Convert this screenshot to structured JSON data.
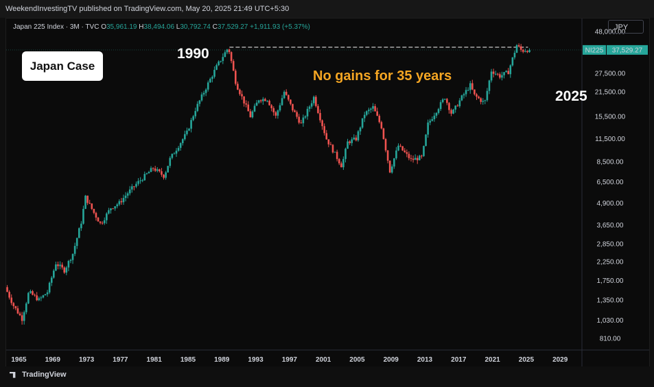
{
  "header": {
    "publisher": "WeekendInvestingTV published on TradingView.com, May 20, 2025 21:49 UTC+5:30"
  },
  "legend": {
    "symbol": "Japan 225 Index · 3M · TVC",
    "o_label": "O",
    "o_value": "35,961.19",
    "h_label": "H",
    "h_value": "38,494.06",
    "l_label": "L",
    "l_value": "30,792.74",
    "c_label": "C",
    "c_value": "37,529.27",
    "change": "+1,911.93 (+5.37%)"
  },
  "currency": "JPY",
  "annotations": {
    "box": "Japan Case",
    "year_start": "1990",
    "year_end": "2025",
    "message": "No gains for 35 years"
  },
  "price_tag": {
    "ticker": "NI225",
    "value": "37,529.27"
  },
  "footer": {
    "brand": "TradingView"
  },
  "colors": {
    "up": "#26a69a",
    "down": "#ef5350",
    "background": "#0b0b0b",
    "annotation": "#f5a623"
  },
  "chart_data": {
    "type": "candlestick",
    "scale": "log",
    "x_range": [
      1963.5,
      2031.5
    ],
    "y_range": [
      700,
      53000
    ],
    "y_ticks": [
      "48,000.00",
      "27,500.00",
      "21,500.00",
      "15,500.00",
      "11,500.00",
      "8,500.00",
      "6,500.00",
      "4,900.00",
      "3,650.00",
      "2,850.00",
      "2,250.00",
      "1,750.00",
      "1,350.00",
      "1,030.00",
      "810.00"
    ],
    "y_tick_values": [
      48000,
      27500,
      21500,
      15500,
      11500,
      8500,
      6500,
      4900,
      3650,
      2850,
      2250,
      1750,
      1350,
      1030,
      810
    ],
    "x_ticks": [
      "1965",
      "1969",
      "1973",
      "1977",
      "1981",
      "1985",
      "1989",
      "1993",
      "1997",
      "2001",
      "2005",
      "2009",
      "2013",
      "2017",
      "2021",
      "2025",
      "2029"
    ],
    "x_tick_values": [
      1965,
      1969,
      1973,
      1977,
      1981,
      1985,
      1989,
      1993,
      1997,
      2001,
      2005,
      2009,
      2013,
      2017,
      2021,
      2025,
      2029
    ],
    "reference_line": {
      "from_year": 1989.9,
      "to_year": 2025.2,
      "value": 38900
    },
    "anchors": [
      [
        1963.5,
        1600
      ],
      [
        1964.5,
        1250
      ],
      [
        1965.5,
        1050
      ],
      [
        1966.3,
        1500
      ],
      [
        1967.5,
        1350
      ],
      [
        1968.5,
        1500
      ],
      [
        1969.5,
        2200
      ],
      [
        1970.5,
        2000
      ],
      [
        1971.5,
        2500
      ],
      [
        1972.5,
        3800
      ],
      [
        1973.0,
        5300
      ],
      [
        1974.0,
        4300
      ],
      [
        1974.8,
        3700
      ],
      [
        1976.0,
        4600
      ],
      [
        1977.0,
        4900
      ],
      [
        1978.0,
        5600
      ],
      [
        1979.0,
        6300
      ],
      [
        1980.0,
        7000
      ],
      [
        1981.0,
        7800
      ],
      [
        1982.3,
        7000
      ],
      [
        1983.0,
        8800
      ],
      [
        1984.0,
        10500
      ],
      [
        1985.0,
        12500
      ],
      [
        1986.0,
        17000
      ],
      [
        1987.5,
        24000
      ],
      [
        1988.5,
        30000
      ],
      [
        1989.9,
        38900
      ],
      [
        1990.8,
        24000
      ],
      [
        1992.5,
        15500
      ],
      [
        1993.5,
        19500
      ],
      [
        1994.5,
        19500
      ],
      [
        1995.5,
        15500
      ],
      [
        1996.5,
        21500
      ],
      [
        1997.5,
        17000
      ],
      [
        1998.5,
        14000
      ],
      [
        2000.0,
        20000
      ],
      [
        2001.5,
        11500
      ],
      [
        2003.3,
        8000
      ],
      [
        2004.0,
        11000
      ],
      [
        2005.0,
        11500
      ],
      [
        2006.0,
        16000
      ],
      [
        2007.0,
        17500
      ],
      [
        2008.0,
        13500
      ],
      [
        2009.0,
        7500
      ],
      [
        2010.0,
        10500
      ],
      [
        2011.5,
        8700
      ],
      [
        2012.8,
        9000
      ],
      [
        2013.5,
        14000
      ],
      [
        2015.5,
        20000
      ],
      [
        2016.3,
        16000
      ],
      [
        2017.5,
        20000
      ],
      [
        2018.5,
        23500
      ],
      [
        2019.0,
        20500
      ],
      [
        2020.2,
        18500
      ],
      [
        2021.0,
        28500
      ],
      [
        2022.0,
        26500
      ],
      [
        2023.0,
        28000
      ],
      [
        2024.0,
        40000
      ],
      [
        2024.6,
        37000
      ],
      [
        2025.0,
        37529
      ]
    ]
  }
}
